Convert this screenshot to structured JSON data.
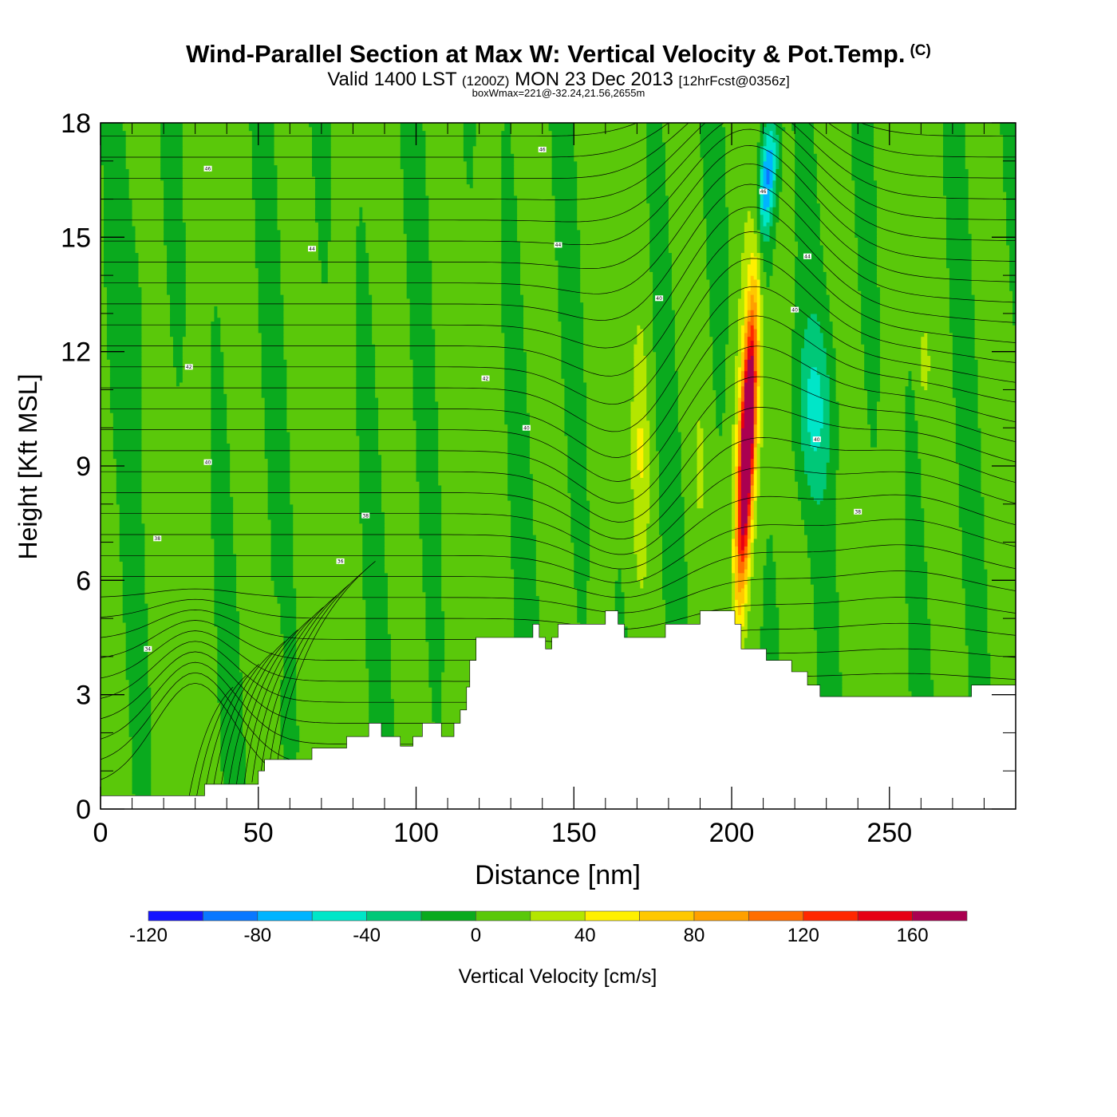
{
  "header": {
    "title": "Wind-Parallel Section at Max W: Vertical Velocity & Pot.Temp.",
    "copyright": "(C)",
    "valid_prefix": "Valid 1400 LST",
    "valid_utc": "(1200Z)",
    "valid_date": "MON 23 Dec 2013",
    "forecast": "[12hrFcst@0356z]",
    "boxwmax": "boxWmax=221@-32.24,21.56,2655m"
  },
  "chart_data": {
    "type": "heatmap",
    "xlabel": "Distance [nm]",
    "ylabel": "Height [Kft MSL]",
    "xlim": [
      0,
      290
    ],
    "ylim": [
      0,
      18
    ],
    "x_ticks": [
      0,
      50,
      100,
      150,
      200,
      250
    ],
    "y_ticks": [
      0,
      3,
      6,
      9,
      12,
      15,
      18
    ],
    "colorbar": {
      "label": "Vertical Velocity [cm/s]",
      "levels": [
        -120,
        -100,
        -80,
        -60,
        -40,
        -20,
        0,
        20,
        40,
        60,
        80,
        100,
        120,
        140,
        160,
        180
      ],
      "tick_labels": [
        -120,
        -80,
        -40,
        0,
        40,
        80,
        120,
        160
      ],
      "colors": [
        "#1414ff",
        "#0a78ff",
        "#00b4ff",
        "#00e6c8",
        "#00c878",
        "#0aaa1e",
        "#5ac80a",
        "#b4e600",
        "#fff000",
        "#ffc800",
        "#ffa000",
        "#ff6e00",
        "#ff2800",
        "#e60014",
        "#aa0050"
      ]
    },
    "terrain_kft": [
      [
        0,
        0.35
      ],
      [
        33,
        0.35
      ],
      [
        33,
        0.65
      ],
      [
        50,
        0.65
      ],
      [
        50,
        1.0
      ],
      [
        52,
        1.0
      ],
      [
        52,
        1.3
      ],
      [
        67,
        1.3
      ],
      [
        67,
        1.6
      ],
      [
        78,
        1.6
      ],
      [
        78,
        1.9
      ],
      [
        85,
        1.9
      ],
      [
        85,
        2.25
      ],
      [
        89,
        2.25
      ],
      [
        89,
        1.9
      ],
      [
        95,
        1.9
      ],
      [
        95,
        1.65
      ],
      [
        99,
        1.65
      ],
      [
        99,
        1.9
      ],
      [
        102,
        1.9
      ],
      [
        102,
        2.25
      ],
      [
        108,
        2.25
      ],
      [
        108,
        1.9
      ],
      [
        112,
        1.9
      ],
      [
        112,
        2.25
      ],
      [
        114,
        2.25
      ],
      [
        114,
        2.6
      ],
      [
        116,
        2.6
      ],
      [
        116,
        3.2
      ],
      [
        117,
        3.2
      ],
      [
        117,
        3.9
      ],
      [
        119,
        3.9
      ],
      [
        119,
        4.5
      ],
      [
        137,
        4.5
      ],
      [
        137,
        4.85
      ],
      [
        139,
        4.85
      ],
      [
        139,
        4.5
      ],
      [
        141,
        4.5
      ],
      [
        141,
        4.2
      ],
      [
        143,
        4.2
      ],
      [
        143,
        4.5
      ],
      [
        145,
        4.5
      ],
      [
        145,
        4.85
      ],
      [
        160,
        4.85
      ],
      [
        160,
        5.2
      ],
      [
        164,
        5.2
      ],
      [
        164,
        4.85
      ],
      [
        166,
        4.85
      ],
      [
        166,
        4.5
      ],
      [
        179,
        4.5
      ],
      [
        179,
        4.85
      ],
      [
        190,
        4.85
      ],
      [
        190,
        5.2
      ],
      [
        201,
        5.2
      ],
      [
        201,
        4.85
      ],
      [
        203,
        4.85
      ],
      [
        203,
        4.2
      ],
      [
        211,
        4.2
      ],
      [
        211,
        3.9
      ],
      [
        219,
        3.9
      ],
      [
        219,
        3.6
      ],
      [
        224,
        3.6
      ],
      [
        224,
        3.25
      ],
      [
        228,
        3.25
      ],
      [
        228,
        2.95
      ],
      [
        276,
        2.95
      ],
      [
        276,
        3.25
      ],
      [
        290,
        3.25
      ]
    ],
    "theta_contour_labels": [
      {
        "x": 34,
        "y": 16.8,
        "text": "46"
      },
      {
        "x": 140,
        "y": 17.3,
        "text": "46"
      },
      {
        "x": 210,
        "y": 16.2,
        "text": "46"
      },
      {
        "x": 67,
        "y": 14.7,
        "text": "44"
      },
      {
        "x": 145,
        "y": 14.8,
        "text": "44"
      },
      {
        "x": 224,
        "y": 14.5,
        "text": "44"
      },
      {
        "x": 177,
        "y": 13.4,
        "text": "40"
      },
      {
        "x": 220,
        "y": 13.1,
        "text": "40"
      },
      {
        "x": 28,
        "y": 11.6,
        "text": "42"
      },
      {
        "x": 122,
        "y": 11.3,
        "text": "42"
      },
      {
        "x": 135,
        "y": 10.0,
        "text": "40"
      },
      {
        "x": 227,
        "y": 9.7,
        "text": "40"
      },
      {
        "x": 34,
        "y": 9.1,
        "text": "40"
      },
      {
        "x": 84,
        "y": 7.7,
        "text": "38"
      },
      {
        "x": 240,
        "y": 7.8,
        "text": "38"
      },
      {
        "x": 18,
        "y": 7.1,
        "text": "38"
      },
      {
        "x": 76,
        "y": 6.5,
        "text": "36"
      },
      {
        "x": 15,
        "y": 4.2,
        "text": "34"
      }
    ]
  }
}
